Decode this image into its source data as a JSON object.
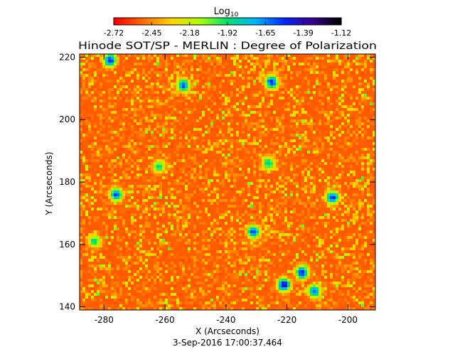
{
  "chart_data": {
    "type": "heatmap",
    "title": "Hinode SOT/SP - MERLIN : Degree of Polarization",
    "xlabel": "X (Arcseconds)",
    "ylabel": "Y (Arcseconds)",
    "timestamp": "3-Sep-2016 17:00:37.464",
    "xlim": [
      -288,
      -191
    ],
    "ylim": [
      139,
      221
    ],
    "x_ticks": [
      -280,
      -260,
      -240,
      -220,
      -200
    ],
    "y_ticks": [
      140,
      160,
      180,
      200,
      220
    ],
    "colorbar": {
      "label": "Log",
      "label_sub": "10",
      "range": [
        -2.72,
        -1.12
      ],
      "ticks": [
        "-2.72",
        "-2.45",
        "-2.18",
        "-1.92",
        "-1.65",
        "-1.39",
        "-1.12"
      ],
      "colors": [
        "#ff0000",
        "#ff6a00",
        "#ffd200",
        "#aaff00",
        "#00e070",
        "#00b4ff",
        "#0028ff",
        "#3a0090",
        "#000000"
      ]
    },
    "base_level": -2.6,
    "features": [
      {
        "x": -278,
        "y": 219,
        "value": -1.45
      },
      {
        "x": -254,
        "y": 211,
        "value": -1.55
      },
      {
        "x": -225,
        "y": 212,
        "value": -1.45
      },
      {
        "x": -276,
        "y": 176,
        "value": -1.55
      },
      {
        "x": -231,
        "y": 164,
        "value": -1.5
      },
      {
        "x": -205,
        "y": 175,
        "value": -1.5
      },
      {
        "x": -221,
        "y": 147,
        "value": -1.35
      },
      {
        "x": -215,
        "y": 151,
        "value": -1.45
      },
      {
        "x": -211,
        "y": 145,
        "value": -1.6
      },
      {
        "x": -226,
        "y": 186,
        "value": -1.8
      },
      {
        "x": -262,
        "y": 185,
        "value": -1.9
      },
      {
        "x": -283,
        "y": 161,
        "value": -1.85
      }
    ]
  }
}
